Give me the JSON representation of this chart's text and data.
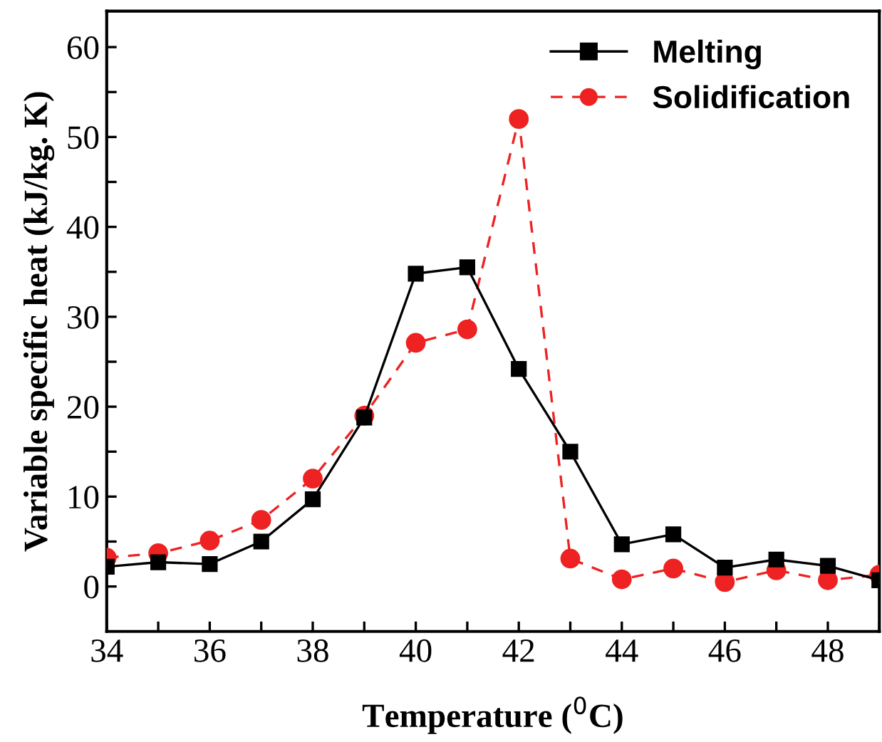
{
  "chart_data": {
    "type": "line",
    "xlabel": "Temperature ($^{0}$C)",
    "ylabel": "Variable specific heat (kJ/kg. K)",
    "x": [
      34,
      35,
      36,
      37,
      38,
      39,
      40,
      41,
      42,
      43,
      44,
      45,
      46,
      47,
      48,
      49
    ],
    "series": [
      {
        "name": "Melting",
        "color": "#000000",
        "marker": "square",
        "line_style": "solid",
        "values": [
          2.2,
          2.7,
          2.5,
          5,
          9.7,
          18.8,
          34.8,
          35.5,
          24.2,
          15,
          4.7,
          5.8,
          2.1,
          3,
          2.3,
          0.7
        ]
      },
      {
        "name": "Solidification",
        "color": "#ee2222",
        "marker": "circle",
        "line_style": "dashed",
        "values": [
          3.2,
          3.7,
          5.1,
          7.4,
          12,
          19,
          27.1,
          28.6,
          52,
          3.1,
          0.8,
          2,
          0.5,
          1.8,
          0.7,
          1.3
        ]
      }
    ],
    "xlim": [
      34,
      49
    ],
    "xticks": [
      34,
      {
        "value": 35,
        "label": null
      },
      36,
      {
        "value": 37,
        "label": null
      },
      38,
      {
        "value": 39,
        "label": null
      },
      40,
      {
        "value": 41,
        "label": null
      },
      42,
      {
        "value": 43,
        "label": null
      },
      44,
      {
        "value": 45,
        "label": null
      },
      46,
      {
        "value": 47,
        "label": null
      },
      48,
      {
        "value": 49,
        "label": null
      }
    ],
    "ylim": [
      -5,
      64
    ],
    "yticks": [
      0,
      {
        "value": 5,
        "label": null
      },
      10,
      {
        "value": 15,
        "label": null
      },
      20,
      {
        "value": 25,
        "label": null
      },
      30,
      {
        "value": 35,
        "label": null
      },
      40,
      {
        "value": 45,
        "label": null
      },
      50,
      {
        "value": 55,
        "label": null
      },
      60
    ],
    "grid": false,
    "legend": "top right"
  }
}
